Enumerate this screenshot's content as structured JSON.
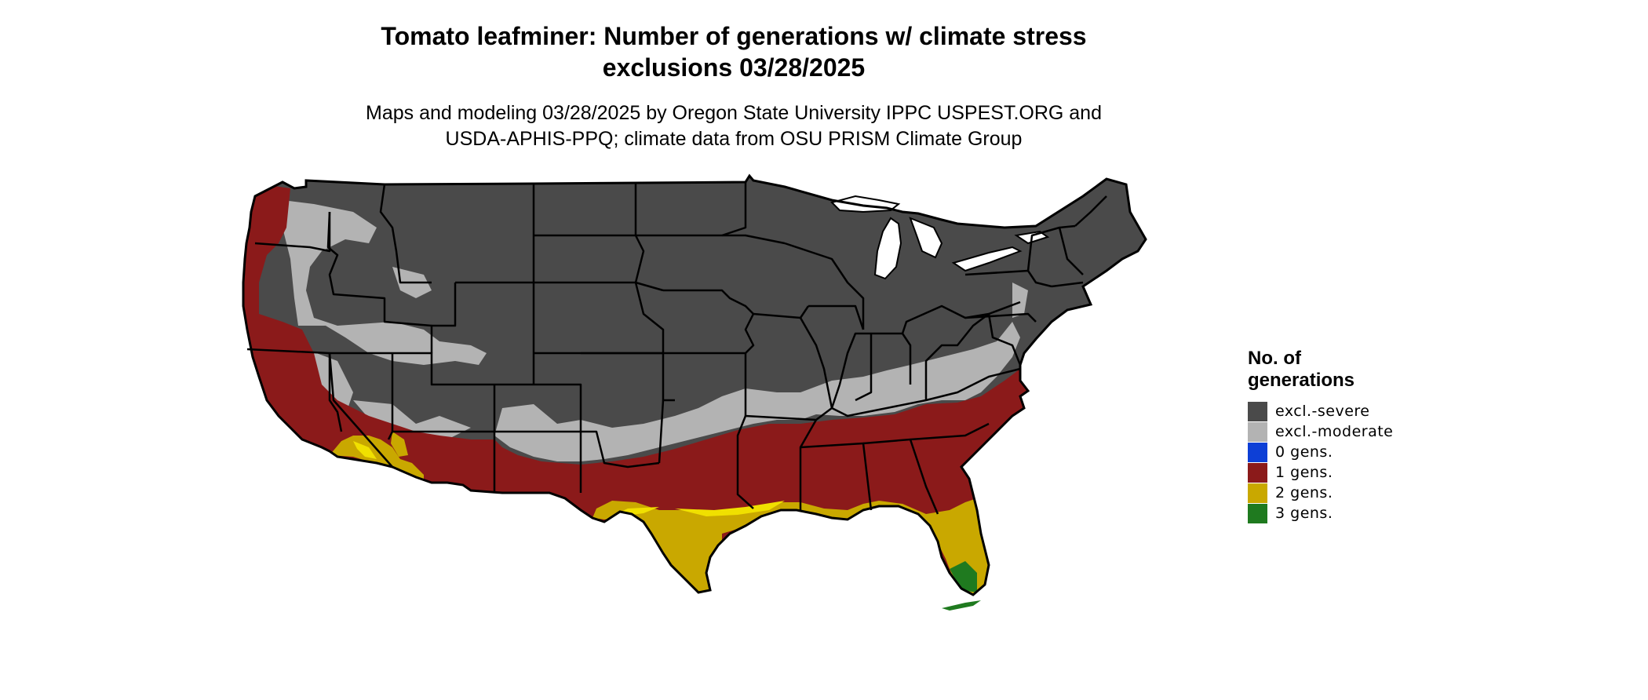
{
  "header": {
    "title_line1": "Tomato leafminer: Number of generations w/ climate stress",
    "title_line2": "exclusions 03/28/2025",
    "subtitle_line1": "Maps and modeling 03/28/2025 by Oregon State University IPPC USPEST.ORG and",
    "subtitle_line2": "USDA-APHIS-PPQ; climate data from OSU PRISM Climate Group"
  },
  "legend": {
    "title_line1": "No. of",
    "title_line2": "generations",
    "items": [
      {
        "label": "excl.-severe",
        "color": "#4a4a4a"
      },
      {
        "label": "excl.-moderate",
        "color": "#b3b3b3"
      },
      {
        "label": "0 gens.",
        "color": "#0d3fd6"
      },
      {
        "label": "1 gens.",
        "color": "#8b1a1a"
      },
      {
        "label": "2 gens.",
        "color": "#c9a800"
      },
      {
        "label": "3 gens.",
        "color": "#1f7a1f"
      }
    ]
  },
  "map": {
    "region": "contiguous-united-states",
    "colors": {
      "severe": "#4a4a4a",
      "moderate": "#b3b3b3",
      "one_gen": "#8b1a1a",
      "two_gen": "#c9a800",
      "three_gen": "#1f7a1f",
      "bright_two_gen": "#f0e000",
      "state_borders": "#000000",
      "water": "#ffffff"
    }
  }
}
